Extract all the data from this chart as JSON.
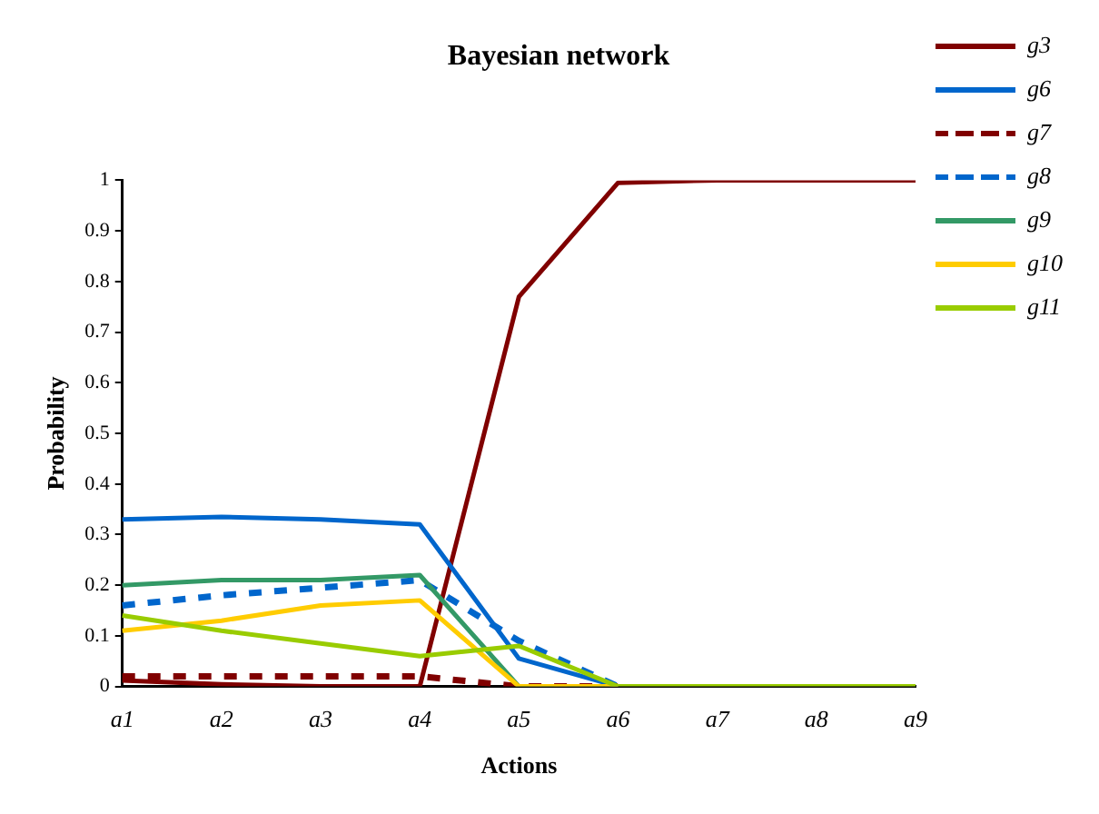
{
  "chart_data": {
    "type": "line",
    "title": "Bayesian network",
    "xlabel": "Actions",
    "ylabel": "Probability",
    "categories": [
      "a1",
      "a2",
      "a3",
      "a4",
      "a5",
      "a6",
      "a7",
      "a8",
      "a9"
    ],
    "ylim": [
      0,
      1
    ],
    "yticks": [
      0,
      {
        "value": 0.1,
        "label": "0.1"
      },
      {
        "value": 0.2,
        "label": "0.2"
      },
      {
        "value": 0.3,
        "label": "0.3"
      },
      {
        "value": 0.4,
        "label": "0.4"
      },
      {
        "value": 0.5,
        "label": "0.5"
      },
      {
        "value": 0.6,
        "label": "0.6"
      },
      {
        "value": 0.7,
        "label": "0.7"
      },
      {
        "value": 0.8,
        "label": "0.8"
      },
      {
        "value": 0.9,
        "label": "0.9"
      },
      1
    ],
    "grid": false,
    "legend": "right",
    "marker": "none",
    "series": [
      {
        "name": "g3",
        "color": "#800000",
        "line_style": "solid",
        "values": [
          0.012,
          0.004,
          0,
          0,
          0.77,
          0.995,
          1,
          1,
          1
        ]
      },
      {
        "name": "g6",
        "color": "#0066cc",
        "line_style": "solid",
        "values": [
          0.33,
          0.335,
          0.33,
          0.32,
          0.055,
          0,
          null,
          null,
          null
        ]
      },
      {
        "name": "g7",
        "color": "#800000",
        "line_style": "dashed",
        "values": [
          0.02,
          0.02,
          0.02,
          0.02,
          0,
          0,
          null,
          null,
          null
        ]
      },
      {
        "name": "g8",
        "color": "#0066cc",
        "line_style": "dashed",
        "values": [
          0.16,
          0.18,
          0.195,
          0.21,
          0.09,
          0,
          null,
          null,
          null
        ]
      },
      {
        "name": "g9",
        "color": "#339966",
        "line_style": "solid",
        "values": [
          0.2,
          0.21,
          0.21,
          0.22,
          0,
          0,
          null,
          null,
          null
        ]
      },
      {
        "name": "g10",
        "color": "#ffcc00",
        "line_style": "solid",
        "values": [
          0.11,
          0.13,
          0.16,
          0.17,
          0,
          0,
          null,
          null,
          null
        ]
      },
      {
        "name": "g11",
        "color": "#99cc00",
        "line_style": "solid",
        "values": [
          0.14,
          0.11,
          0.085,
          0.06,
          0.08,
          0,
          0,
          0,
          0
        ]
      }
    ]
  }
}
